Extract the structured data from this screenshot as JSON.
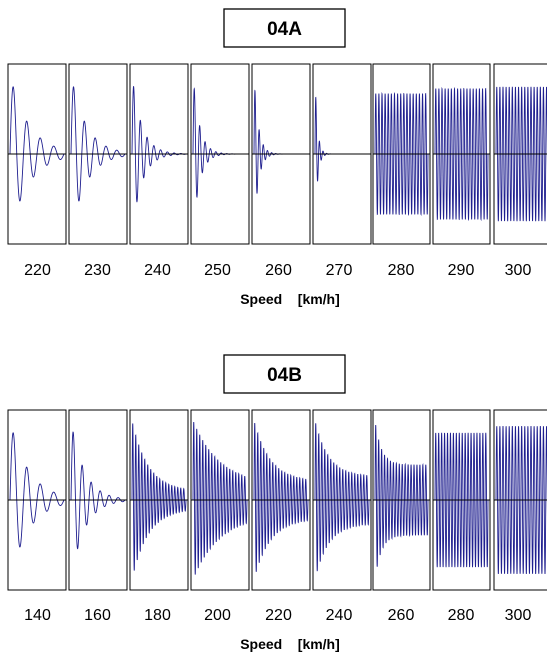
{
  "chart_data": [
    {
      "type": "line",
      "title": "04A",
      "xlabel": "Speed    [km/h]",
      "x_unit": "km/h",
      "categories": [
        "220",
        "230",
        "240",
        "250",
        "260",
        "270",
        "280",
        "290",
        "300"
      ],
      "series": [
        {
          "speed": 220,
          "regime": "damped",
          "amplitude": 0.95,
          "decay": 0.35,
          "cycles": 4
        },
        {
          "speed": 230,
          "regime": "damped",
          "amplitude": 0.95,
          "decay": 0.28,
          "cycles": 5
        },
        {
          "speed": 240,
          "regime": "damped",
          "amplitude": 0.95,
          "decay": 0.18,
          "cycles": 8
        },
        {
          "speed": 250,
          "regime": "damped",
          "amplitude": 0.95,
          "decay": 0.12,
          "cycles": 10
        },
        {
          "speed": 260,
          "regime": "damped",
          "amplitude": 0.95,
          "decay": 0.08,
          "cycles": 13
        },
        {
          "speed": 270,
          "regime": "damped",
          "amplitude": 0.95,
          "decay": 0.045,
          "cycles": 15
        },
        {
          "speed": 280,
          "regime": "sustained",
          "amplitude": 0.72,
          "decay": 0,
          "cycles": 17
        },
        {
          "speed": 290,
          "regime": "sustained",
          "amplitude": 0.78,
          "decay": 0,
          "cycles": 17
        },
        {
          "speed": 300,
          "regime": "sustained",
          "amplitude": 0.8,
          "decay": 0,
          "cycles": 18
        }
      ]
    },
    {
      "type": "line",
      "title": "04B",
      "xlabel": "Speed    [km/h]",
      "x_unit": "km/h",
      "categories": [
        "140",
        "160",
        "180",
        "200",
        "220",
        "240",
        "260",
        "280",
        "300"
      ],
      "series": [
        {
          "speed": 140,
          "regime": "damped",
          "amplitude": 0.95,
          "decay": 0.35,
          "cycles": 4
        },
        {
          "speed": 160,
          "regime": "damped",
          "amplitude": 0.95,
          "decay": 0.25,
          "cycles": 6
        },
        {
          "speed": 180,
          "regime": "damped_to_limit",
          "amplitude": 0.95,
          "limit": 0.1,
          "decay": 0.3,
          "cycles": 18
        },
        {
          "speed": 200,
          "regime": "damped_to_limit",
          "amplitude": 0.95,
          "limit": 0.17,
          "decay": 0.5,
          "cycles": 18
        },
        {
          "speed": 220,
          "regime": "damped_to_limit",
          "amplitude": 0.95,
          "limit": 0.22,
          "decay": 0.3,
          "cycles": 18
        },
        {
          "speed": 240,
          "regime": "damped_to_limit",
          "amplitude": 0.95,
          "limit": 0.28,
          "decay": 0.25,
          "cycles": 18
        },
        {
          "speed": 260,
          "regime": "damped_to_limit",
          "amplitude": 0.95,
          "limit": 0.42,
          "decay": 0.12,
          "cycles": 18
        },
        {
          "speed": 280,
          "regime": "sustained",
          "amplitude": 0.8,
          "decay": 0,
          "cycles": 18
        },
        {
          "speed": 300,
          "regime": "sustained",
          "amplitude": 0.88,
          "decay": 0,
          "cycles": 18
        }
      ]
    }
  ],
  "colors": {
    "trace": "#1f1f8f",
    "axis": "#000000",
    "frame": "#000000",
    "background": "#ffffff"
  }
}
